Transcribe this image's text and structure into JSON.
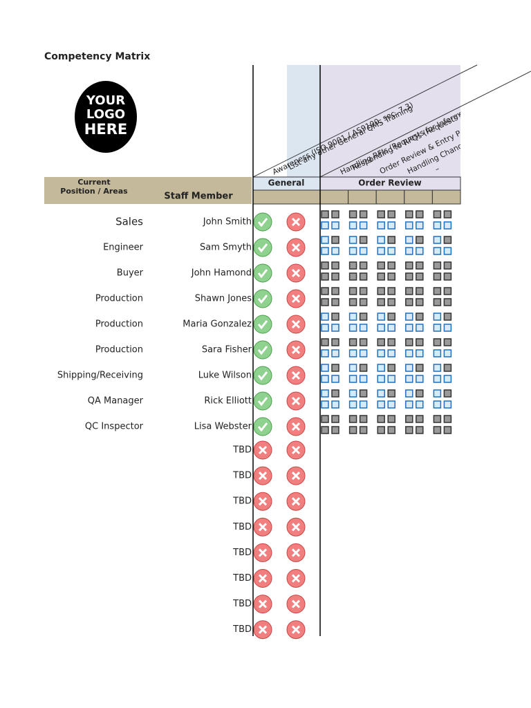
{
  "header": {
    "title": "Competency Matrix",
    "logo_text": [
      "YOUR",
      "LOGO",
      "HERE"
    ]
  },
  "columns": {
    "position": [
      "Current",
      "Position / Areas"
    ],
    "staff": "Staff Member",
    "groups": [
      {
        "name": "General",
        "items": [
          "Awareness (ISO 9001 / AS9100, sec. 7.3)",
          "List any other General QMS Training"
        ]
      },
      {
        "name": "Order Review",
        "items": [
          "Handling RFIs (Requests for Inform",
          "Responding to RFQs (Requests f",
          "Order Review & Entry P",
          "Handling Chang",
          "–"
        ]
      }
    ]
  },
  "rows": [
    {
      "position": "Sales",
      "name": "John Smith"
    },
    {
      "position": "Engineer",
      "name": "Sam Smyth"
    },
    {
      "position": "Buyer",
      "name": "John Hamond"
    },
    {
      "position": "Production",
      "name": "Shawn Jones"
    },
    {
      "position": "Production",
      "name": "Maria Gonzalez"
    },
    {
      "position": "Production",
      "name": "Sara Fisher"
    },
    {
      "position": "Shipping/Receiving",
      "name": "Luke Wilson"
    },
    {
      "position": "QA Manager",
      "name": "Rick Elliott"
    },
    {
      "position": "QC Inspector",
      "name": "Lisa Webster"
    },
    {
      "name": "TBD"
    },
    {
      "name": "TBD"
    },
    {
      "name": "TBD"
    },
    {
      "name": "TBD"
    },
    {
      "name": "TBD"
    },
    {
      "name": "TBD"
    },
    {
      "name": "TBD"
    },
    {
      "name": "TBD"
    }
  ]
}
